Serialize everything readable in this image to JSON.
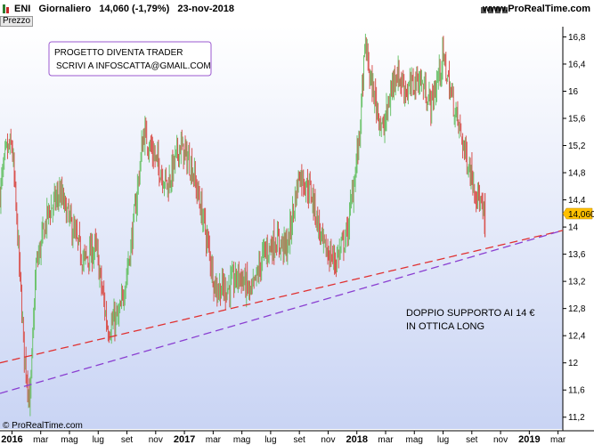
{
  "header": {
    "symbol": "ENI",
    "title": "ENI   Giornaliero   14,060 (-1,79%)   23-nov-2018",
    "site": "www.ProRealTime.com",
    "panel_label": "Prezzo",
    "copyright": "© ProRealTime.com"
  },
  "colors": {
    "up": "#6dc36d",
    "down": "#d9534f",
    "support_line_1": "#e03030",
    "support_line_2": "#8a3fd1",
    "price_tag": "#ffc000"
  },
  "chart_data": {
    "type": "candlestick",
    "title": "ENI Giornaliero",
    "last_price": "14,060",
    "change": "(-1,79%)",
    "date": "23-nov-2018",
    "ylim": [
      11.0,
      16.95
    ],
    "y_ticks": [
      "16,8",
      "16,4",
      "16",
      "15,6",
      "15,2",
      "14,8",
      "14,4",
      "14",
      "13,6",
      "13,2",
      "12,8",
      "12,4",
      "12",
      "11,6",
      "11,2"
    ],
    "x_labels": [
      "2016",
      "mar",
      "mag",
      "lug",
      "set",
      "nov",
      "2017",
      "mar",
      "mag",
      "lug",
      "set",
      "nov",
      "2018",
      "mar",
      "mag",
      "lug",
      "set",
      "nov",
      "2019",
      "mar"
    ],
    "x_label_bold": [
      true,
      false,
      false,
      false,
      false,
      false,
      true,
      false,
      false,
      false,
      false,
      false,
      true,
      false,
      false,
      false,
      false,
      false,
      true,
      false
    ],
    "price_path": [
      {
        "t": 0,
        "p": 14.5
      },
      {
        "t": 0.5,
        "p": 15.1
      },
      {
        "t": 1,
        "p": 15.2
      },
      {
        "t": 1.5,
        "p": 13.8
      },
      {
        "t": 2,
        "p": 12.2
      },
      {
        "t": 2.5,
        "p": 11.4
      },
      {
        "t": 3,
        "p": 13.4
      },
      {
        "t": 4,
        "p": 14.2
      },
      {
        "t": 5,
        "p": 14.5
      },
      {
        "t": 6,
        "p": 14.0
      },
      {
        "t": 7,
        "p": 13.5
      },
      {
        "t": 8,
        "p": 13.7
      },
      {
        "t": 9,
        "p": 12.5
      },
      {
        "t": 10,
        "p": 12.7
      },
      {
        "t": 11,
        "p": 13.8
      },
      {
        "t": 12,
        "p": 15.4
      },
      {
        "t": 13,
        "p": 15.0
      },
      {
        "t": 14,
        "p": 14.6
      },
      {
        "t": 15,
        "p": 15.2
      },
      {
        "t": 16,
        "p": 14.9
      },
      {
        "t": 17,
        "p": 14.1
      },
      {
        "t": 18,
        "p": 13.1
      },
      {
        "t": 19,
        "p": 13.1
      },
      {
        "t": 20,
        "p": 13.3
      },
      {
        "t": 21,
        "p": 13.0
      },
      {
        "t": 22,
        "p": 13.6
      },
      {
        "t": 23,
        "p": 13.8
      },
      {
        "t": 24,
        "p": 13.7
      },
      {
        "t": 25,
        "p": 14.8
      },
      {
        "t": 26,
        "p": 14.5
      },
      {
        "t": 27,
        "p": 13.7
      },
      {
        "t": 28,
        "p": 13.5
      },
      {
        "t": 29,
        "p": 13.9
      },
      {
        "t": 30,
        "p": 15.3
      },
      {
        "t": 30.5,
        "p": 16.7
      },
      {
        "t": 31,
        "p": 16.1
      },
      {
        "t": 32,
        "p": 15.4
      },
      {
        "t": 33,
        "p": 16.3
      },
      {
        "t": 34,
        "p": 16.0
      },
      {
        "t": 35,
        "p": 16.2
      },
      {
        "t": 36,
        "p": 15.8
      },
      {
        "t": 37,
        "p": 16.5
      },
      {
        "t": 38,
        "p": 15.7
      },
      {
        "t": 39,
        "p": 15.0
      },
      {
        "t": 40,
        "p": 14.4
      },
      {
        "t": 40.5,
        "p": 14.06
      }
    ],
    "support_lines": [
      {
        "name": "support-1",
        "from": {
          "t": 0,
          "p": 12.0
        },
        "to": {
          "t": 47,
          "p": 13.95
        }
      },
      {
        "name": "support-2",
        "from": {
          "t": 0,
          "p": 11.55
        },
        "to": {
          "t": 47,
          "p": 13.95
        }
      }
    ]
  },
  "annotations": {
    "box_line1": "PROGETTO DIVENTA TRADER",
    "box_line2": "SCRIVI A INFOSCATTA@GMAIL.COM",
    "note_line1": "DOPPIO SUPPORTO AI 14 €",
    "note_line2": "IN OTTICA LONG"
  }
}
